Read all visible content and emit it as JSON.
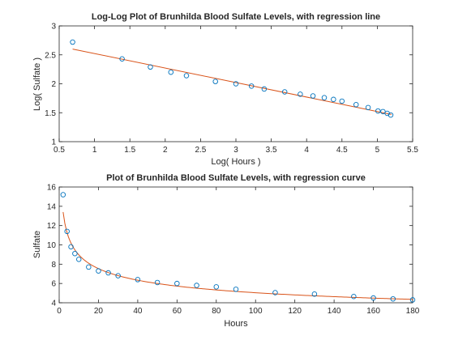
{
  "chart_data": [
    {
      "type": "scatter",
      "title": "Log-Log Plot of Brunhilda Blood Sulfate Levels, with regression line",
      "xlabel": "Log( Hours )",
      "ylabel": "Log( Sulfate )",
      "xlim": [
        0.5,
        5.5
      ],
      "ylim": [
        1,
        3
      ],
      "xticks": [
        0.5,
        1,
        1.5,
        2,
        2.5,
        3,
        3.5,
        4,
        4.5,
        5,
        5.5
      ],
      "xtick_labels": [
        "0.5",
        "1",
        "1.5",
        "2",
        "2.5",
        "3",
        "3.5",
        "4",
        "4.5",
        "5",
        "5.5"
      ],
      "yticks": [
        1,
        1.5,
        2,
        2.5,
        3
      ],
      "ytick_labels": [
        "1",
        "1.5",
        "2",
        "2.5",
        "3"
      ],
      "grid": false,
      "marker_color": "#0072BD",
      "line_color": "#D95319",
      "points": [
        [
          0.69,
          2.72
        ],
        [
          1.39,
          2.43
        ],
        [
          1.79,
          2.29
        ],
        [
          2.08,
          2.2
        ],
        [
          2.3,
          2.14
        ],
        [
          2.71,
          2.04
        ],
        [
          3.0,
          2.0
        ],
        [
          3.22,
          1.96
        ],
        [
          3.4,
          1.91
        ],
        [
          3.69,
          1.86
        ],
        [
          3.91,
          1.82
        ],
        [
          4.09,
          1.79
        ],
        [
          4.25,
          1.76
        ],
        [
          4.38,
          1.73
        ],
        [
          4.5,
          1.7
        ],
        [
          4.7,
          1.64
        ],
        [
          4.87,
          1.59
        ],
        [
          5.01,
          1.53
        ],
        [
          5.08,
          1.52
        ],
        [
          5.14,
          1.49
        ],
        [
          5.19,
          1.46
        ]
      ],
      "fit_line": {
        "x": [
          0.69,
          5.2
        ],
        "y": [
          2.6,
          1.47
        ]
      }
    },
    {
      "type": "scatter",
      "title": "Plot of Brunhilda Blood Sulfate Levels, with regression curve",
      "xlabel": "Hours",
      "ylabel": "Sulfate",
      "xlim": [
        0,
        180
      ],
      "ylim": [
        4,
        16
      ],
      "xticks": [
        0,
        20,
        40,
        60,
        80,
        100,
        120,
        140,
        160,
        180
      ],
      "xtick_labels": [
        "0",
        "20",
        "40",
        "60",
        "80",
        "100",
        "120",
        "140",
        "160",
        "180"
      ],
      "yticks": [
        4,
        6,
        8,
        10,
        12,
        14,
        16
      ],
      "ytick_labels": [
        "4",
        "6",
        "8",
        "10",
        "12",
        "14",
        "16"
      ],
      "grid": false,
      "marker_color": "#0072BD",
      "line_color": "#D95319",
      "points": [
        [
          2,
          15.2
        ],
        [
          4,
          11.4
        ],
        [
          6,
          9.8
        ],
        [
          8,
          9.1
        ],
        [
          10,
          8.5
        ],
        [
          15,
          7.7
        ],
        [
          20,
          7.3
        ],
        [
          25,
          7.1
        ],
        [
          30,
          6.8
        ],
        [
          40,
          6.4
        ],
        [
          50,
          6.1
        ],
        [
          60,
          6.0
        ],
        [
          70,
          5.8
        ],
        [
          80,
          5.65
        ],
        [
          90,
          5.4
        ],
        [
          110,
          5.05
        ],
        [
          130,
          4.9
        ],
        [
          150,
          4.65
        ],
        [
          160,
          4.5
        ],
        [
          170,
          4.4
        ],
        [
          180,
          4.3
        ]
      ],
      "fit_curve": {
        "type": "power",
        "a": 15.94,
        "b": -0.25,
        "x_range": [
          2,
          180
        ]
      }
    }
  ]
}
